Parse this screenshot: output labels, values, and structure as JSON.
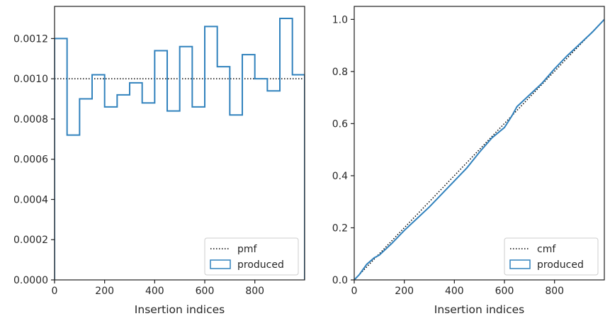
{
  "colors": {
    "produced": "#3182bd",
    "reference": "#000000",
    "axes": "#262626"
  },
  "chart_data": [
    {
      "type": "line",
      "style": "step-histogram",
      "xlabel": "Insertion indices",
      "ylabel": "",
      "xlim": [
        0,
        999
      ],
      "ylim": [
        0,
        0.00136
      ],
      "xticks": [
        0,
        200,
        400,
        600,
        800
      ],
      "yticks": [
        "0.0000",
        "0.0002",
        "0.0004",
        "0.0006",
        "0.0008",
        "0.0010",
        "0.0012"
      ],
      "ytick_values": [
        0,
        0.0002,
        0.0004,
        0.0006,
        0.0008,
        0.001,
        0.0012
      ],
      "grid": false,
      "legend_position": "lower right",
      "bin_edges": [
        0,
        50,
        100,
        150,
        200,
        250,
        300,
        350,
        400,
        450,
        500,
        550,
        600,
        650,
        700,
        750,
        800,
        850,
        900,
        950,
        999
      ],
      "series": [
        {
          "name": "pmf",
          "style": "dotted",
          "kind": "hline",
          "y": 0.001
        },
        {
          "name": "produced",
          "style": "step",
          "kind": "hist",
          "values": [
            0.0012,
            0.00072,
            0.0009,
            0.00102,
            0.00086,
            0.00092,
            0.00098,
            0.00088,
            0.00114,
            0.00084,
            0.00116,
            0.00086,
            0.00126,
            0.00106,
            0.00082,
            0.00112,
            0.001,
            0.00094,
            0.0013,
            0.00102
          ]
        }
      ]
    },
    {
      "type": "line",
      "xlabel": "Insertion indices",
      "ylabel": "",
      "xlim": [
        0,
        999
      ],
      "ylim": [
        0,
        1.05
      ],
      "xticks": [
        0,
        200,
        400,
        600,
        800
      ],
      "yticks": [
        "0.0",
        "0.2",
        "0.4",
        "0.6",
        "0.8",
        "1.0"
      ],
      "ytick_values": [
        0,
        0.2,
        0.4,
        0.6,
        0.8,
        1.0
      ],
      "grid": false,
      "legend_position": "lower right",
      "series": [
        {
          "name": "cmf",
          "style": "dotted",
          "x": [
            0,
            999
          ],
          "y": [
            0,
            1
          ]
        },
        {
          "name": "produced",
          "style": "solid",
          "x": [
            0,
            20,
            50,
            80,
            100,
            150,
            200,
            250,
            300,
            350,
            400,
            450,
            500,
            550,
            600,
            630,
            650,
            700,
            750,
            800,
            850,
            900,
            950,
            999
          ],
          "y": [
            0,
            0.02,
            0.06,
            0.085,
            0.095,
            0.14,
            0.19,
            0.235,
            0.28,
            0.33,
            0.38,
            0.43,
            0.49,
            0.545,
            0.585,
            0.63,
            0.665,
            0.71,
            0.755,
            0.81,
            0.86,
            0.905,
            0.95,
            1.0
          ]
        }
      ]
    }
  ]
}
